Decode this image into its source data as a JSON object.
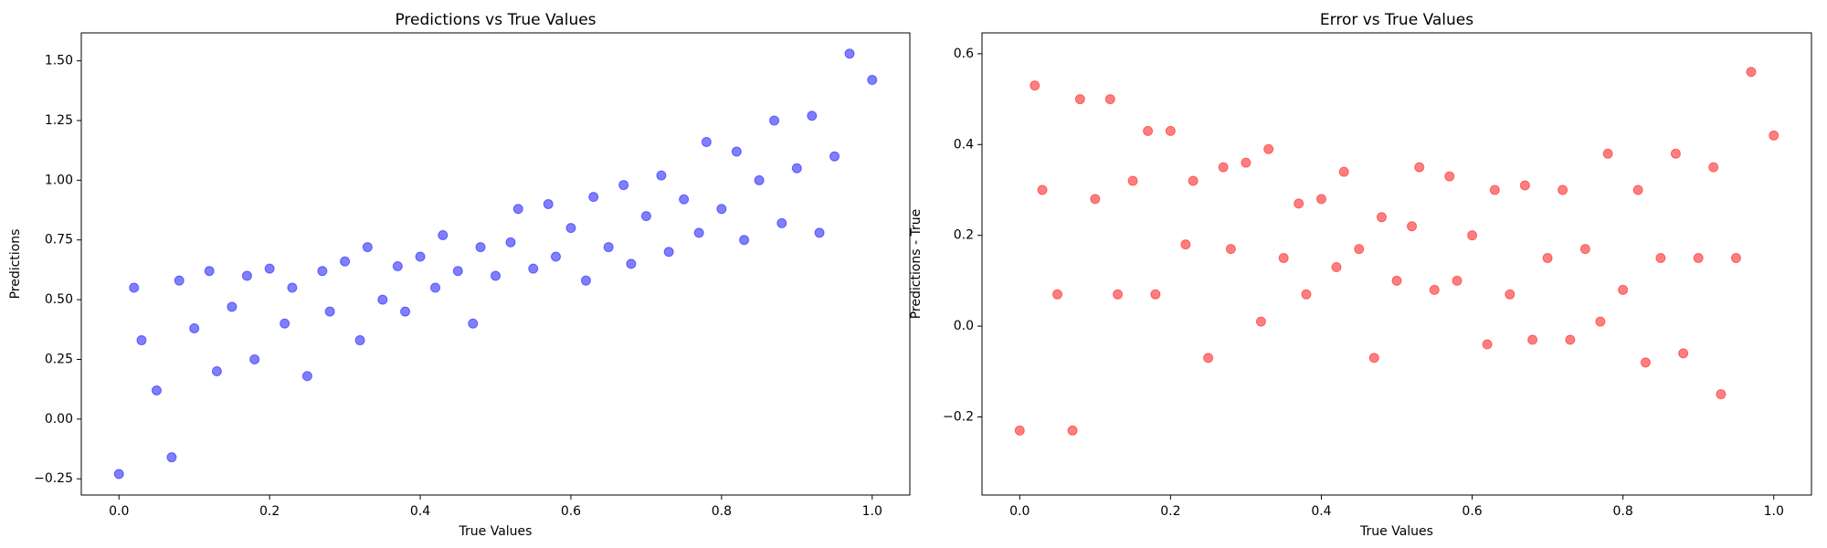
{
  "chart_data": [
    {
      "type": "scatter",
      "title": "Predictions vs True Values",
      "xlabel": "True Values",
      "ylabel": "Predictions",
      "color": "#0000ff",
      "alpha": 0.5,
      "x": [
        0,
        0.02,
        0.03,
        0.05,
        0.07,
        0.08,
        0.1,
        0.12,
        0.13,
        0.15,
        0.17,
        0.18,
        0.2,
        0.22,
        0.23,
        0.25,
        0.27,
        0.28,
        0.3,
        0.32,
        0.33,
        0.35,
        0.37,
        0.38,
        0.4,
        0.42,
        0.43,
        0.45,
        0.47,
        0.48,
        0.5,
        0.52,
        0.53,
        0.55,
        0.57,
        0.58,
        0.6,
        0.62,
        0.63,
        0.65,
        0.67,
        0.68,
        0.7,
        0.72,
        0.73,
        0.75,
        0.77,
        0.78,
        0.8,
        0.82,
        0.83,
        0.85,
        0.87,
        0.88,
        0.9,
        0.92,
        0.93,
        0.95,
        0.97,
        1.0
      ],
      "values": [
        -0.23,
        0.55,
        0.33,
        0.12,
        -0.16,
        0.58,
        0.38,
        0.62,
        0.2,
        0.47,
        0.6,
        0.25,
        0.63,
        0.4,
        0.55,
        0.18,
        0.62,
        0.45,
        0.66,
        0.33,
        0.72,
        0.5,
        0.64,
        0.45,
        0.68,
        0.55,
        0.77,
        0.62,
        0.4,
        0.72,
        0.6,
        0.74,
        0.88,
        0.63,
        0.9,
        0.68,
        0.8,
        0.58,
        0.93,
        0.72,
        0.98,
        0.65,
        0.85,
        1.02,
        0.7,
        0.92,
        0.78,
        1.16,
        0.88,
        1.12,
        0.75,
        1.0,
        1.25,
        0.82,
        1.05,
        1.27,
        0.78,
        1.1,
        1.53,
        1.42
      ],
      "xlim": [
        -0.05,
        1.05
      ],
      "ylim": [
        -0.318,
        1.617
      ],
      "xticks": [
        {
          "value": 0,
          "label": "0.0"
        },
        {
          "value": 0.2,
          "label": "0.2"
        },
        {
          "value": 0.4,
          "label": "0.4"
        },
        {
          "value": 0.6,
          "label": "0.6"
        },
        {
          "value": 0.8,
          "label": "0.8"
        },
        {
          "value": 1.0,
          "label": "1.0"
        }
      ],
      "yticks": [
        {
          "value": -0.25,
          "label": "−0.25"
        },
        {
          "value": 0,
          "label": "0.00"
        },
        0.25,
        {
          "value": 0.5,
          "label": "0.50"
        },
        0.75,
        {
          "value": 1.0,
          "label": "1.00"
        },
        1.25,
        {
          "value": 1.5,
          "label": "1.50"
        }
      ]
    },
    {
      "type": "scatter",
      "title": "Error vs True Values",
      "xlabel": "True Values",
      "ylabel": "Predictions - True",
      "color": "#ff0000",
      "alpha": 0.5,
      "x": [
        0,
        0.02,
        0.03,
        0.05,
        0.07,
        0.08,
        0.1,
        0.12,
        0.13,
        0.15,
        0.17,
        0.18,
        0.2,
        0.22,
        0.23,
        0.25,
        0.27,
        0.28,
        0.3,
        0.32,
        0.33,
        0.35,
        0.37,
        0.38,
        0.4,
        0.42,
        0.43,
        0.45,
        0.47,
        0.48,
        0.5,
        0.52,
        0.53,
        0.55,
        0.57,
        0.58,
        0.6,
        0.62,
        0.63,
        0.65,
        0.67,
        0.68,
        0.7,
        0.72,
        0.73,
        0.75,
        0.77,
        0.78,
        0.8,
        0.82,
        0.83,
        0.85,
        0.87,
        0.88,
        0.9,
        0.92,
        0.93,
        0.95,
        0.97,
        1.0
      ],
      "values": [
        -0.23,
        0.53,
        0.3,
        0.07,
        -0.23,
        0.5,
        0.28,
        0.5,
        0.07,
        0.32,
        0.43,
        0.07,
        0.43,
        0.18,
        0.32,
        -0.07,
        0.35,
        0.17,
        0.36,
        0.01,
        0.39,
        0.15,
        0.27,
        0.07,
        0.28,
        0.13,
        0.34,
        0.17,
        -0.07,
        0.24,
        0.1,
        0.22,
        0.35,
        0.08,
        0.33,
        0.1,
        0.2,
        -0.04,
        0.3,
        0.07,
        0.31,
        -0.03,
        0.15,
        0.3,
        -0.03,
        0.17,
        0.01,
        0.38,
        0.08,
        0.3,
        -0.08,
        0.15,
        0.38,
        -0.06,
        0.15,
        0.35,
        -0.15,
        0.15,
        0.56,
        0.42
      ],
      "xlim": [
        -0.05,
        1.05
      ],
      "ylim": [
        -0.372,
        0.646
      ],
      "xticks": [
        {
          "value": 0,
          "label": "0.0"
        },
        {
          "value": 0.2,
          "label": "0.2"
        },
        {
          "value": 0.4,
          "label": "0.4"
        },
        {
          "value": 0.6,
          "label": "0.6"
        },
        {
          "value": 0.8,
          "label": "0.8"
        },
        {
          "value": 1.0,
          "label": "1.0"
        }
      ],
      "yticks": [
        {
          "value": -0.2,
          "label": "−0.2"
        },
        {
          "value": 0,
          "label": "0.0"
        },
        0.2,
        0.4,
        0.6
      ]
    }
  ]
}
